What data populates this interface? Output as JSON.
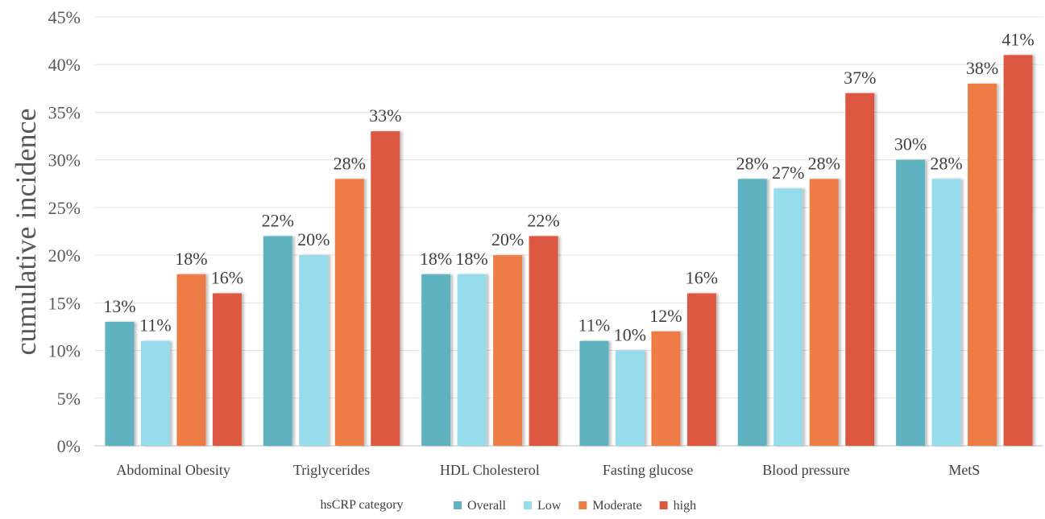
{
  "chart_data": {
    "type": "bar",
    "title": "",
    "xlabel": "hsCRP category",
    "ylabel": "cumulative incidence",
    "ylim": [
      0,
      45
    ],
    "y_ticks": [
      "0%",
      "5%",
      "10%",
      "15%",
      "20%",
      "25%",
      "30%",
      "35%",
      "40%",
      "45%"
    ],
    "grid": true,
    "legend_position": "bottom",
    "categories": [
      "Abdominal Obesity",
      "Triglycerides",
      "HDL Cholesterol",
      "Fasting glucose",
      "Blood pressure",
      "MetS"
    ],
    "series": [
      {
        "name": "Overall",
        "color": "#5fb2c0",
        "values": [
          13,
          22,
          18,
          11,
          28,
          30
        ]
      },
      {
        "name": "Low",
        "color": "#97dcea",
        "values": [
          11,
          20,
          18,
          10,
          27,
          28
        ]
      },
      {
        "name": "Moderate",
        "color": "#ee7d45",
        "values": [
          18,
          28,
          20,
          12,
          28,
          38
        ]
      },
      {
        "name": "high",
        "color": "#dd5840",
        "values": [
          16,
          33,
          22,
          16,
          37,
          41
        ]
      }
    ],
    "data_labels": [
      [
        "13%",
        "22%",
        "18%",
        "11%",
        "28%",
        "30%"
      ],
      [
        "11%",
        "20%",
        "18%",
        "10%",
        "27%",
        "28%"
      ],
      [
        "18%",
        "28%",
        "20%",
        "12%",
        "28%",
        "38%"
      ],
      [
        "16%",
        "33%",
        "22%",
        "16%",
        "37%",
        "41%"
      ]
    ]
  }
}
